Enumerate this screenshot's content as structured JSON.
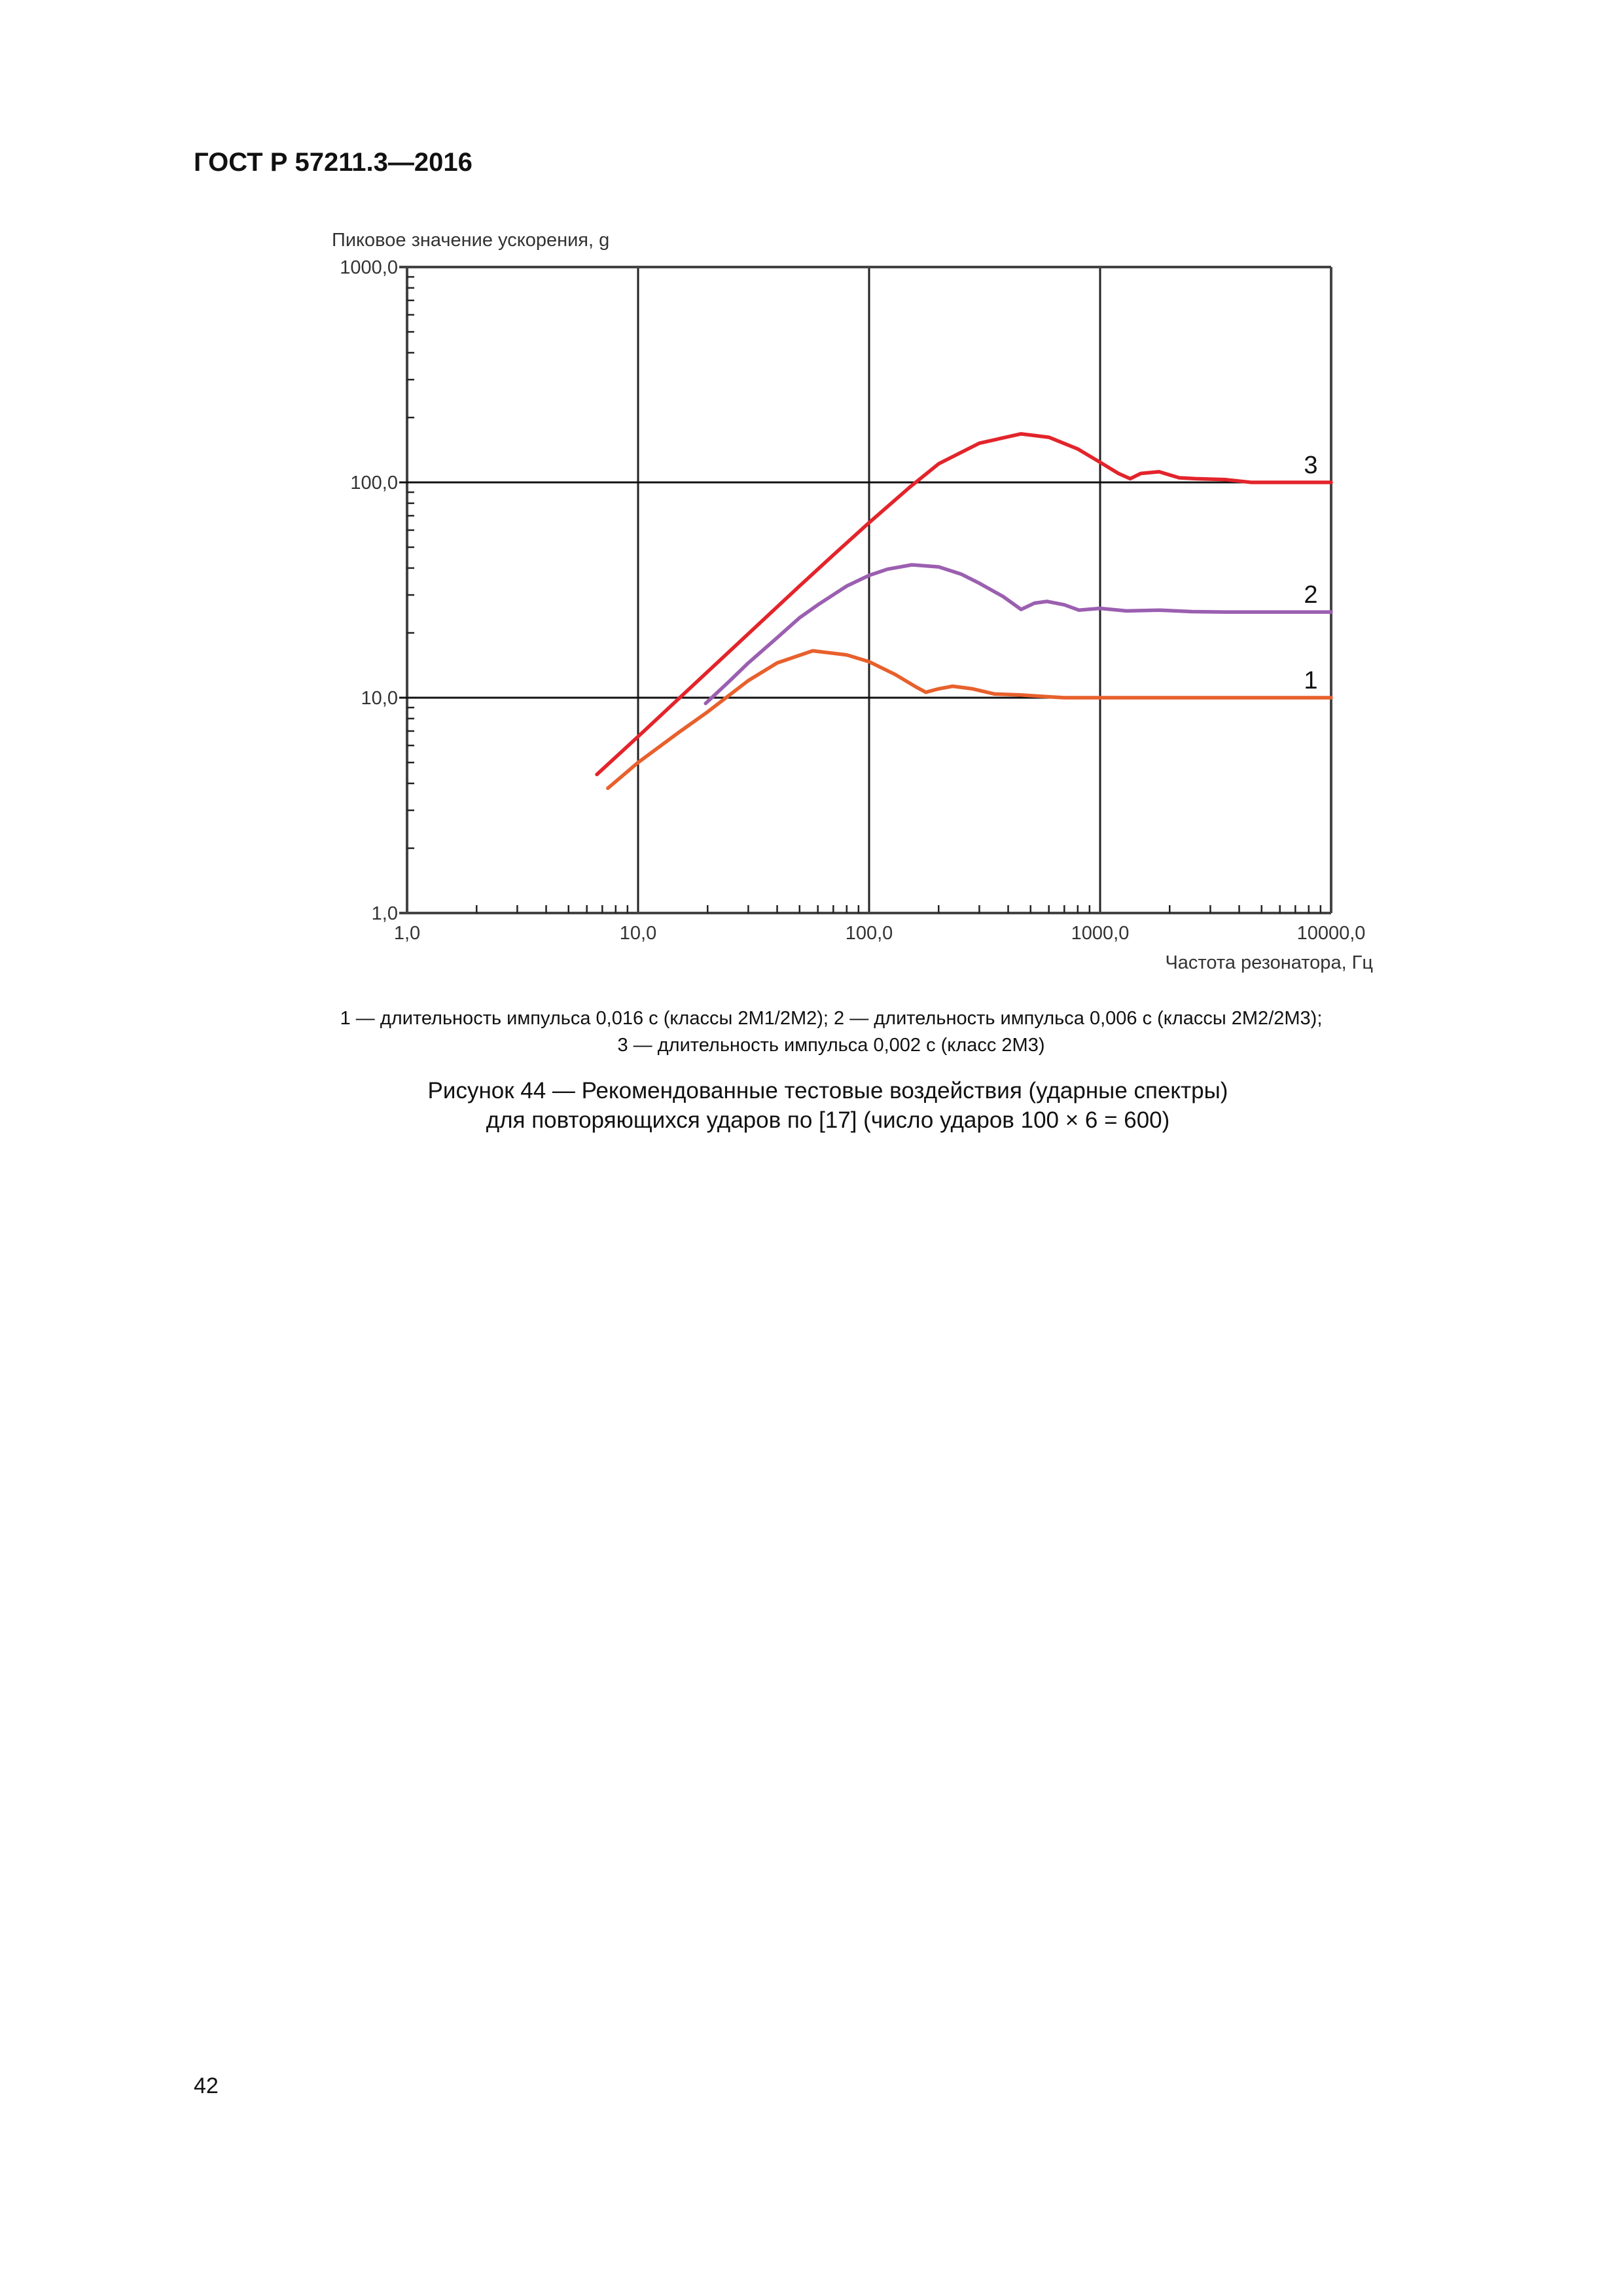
{
  "document": {
    "header": "ГОСТ Р 57211.3—2016",
    "page_number": "42"
  },
  "figure": {
    "legend_lines": [
      "1 — длительность импульса 0,016 с (классы 2М1/2М2); 2 — длительность импульса 0,006 с (классы 2М2/2М3);",
      "3 — длительность импульса 0,002 с (класс 2М3)"
    ],
    "caption_lines": [
      "Рисунок 44 — Рекомендованные тестовые воздействия (ударные спектры)",
      "для повторяющихся ударов по [17] (число ударов 100 × 6 = 600)"
    ]
  },
  "chart_data": {
    "type": "line",
    "title": "",
    "xlabel": "Частота резонатора, Гц",
    "ylabel": "Пиковое значение ускорения, g",
    "xscale": "log",
    "yscale": "log",
    "xlim": [
      1,
      10000
    ],
    "ylim": [
      1,
      1000
    ],
    "x_tick_labels": [
      "1,0",
      "10,0",
      "100,0",
      "1000,0",
      "10000,0"
    ],
    "y_tick_labels": [
      "1,0",
      "10,0",
      "100,0",
      "1000,0"
    ],
    "grid": "major decades",
    "legend_position": "curve labels at right end",
    "series": [
      {
        "name": "1",
        "label": "длительность импульса 0,016 с (классы 2М1/2М2)",
        "color": "#e8602c",
        "x": [
          7.4,
          10,
          15,
          20,
          30,
          40,
          57,
          80,
          100,
          130,
          160,
          176,
          200,
          230,
          280,
          350,
          450,
          600,
          700,
          1000,
          2000,
          5000,
          10000
        ],
        "y": [
          3.8,
          5.0,
          6.9,
          8.6,
          12.0,
          14.5,
          16.5,
          15.8,
          14.7,
          12.8,
          11.2,
          10.6,
          11.0,
          11.3,
          11.0,
          10.4,
          10.3,
          10.1,
          10.0,
          10.0,
          10.0,
          10.0,
          10.0
        ]
      },
      {
        "name": "2",
        "label": "длительность импульса 0,006 с (классы 2М2/2М3)",
        "color": "#9b5fb0",
        "x": [
          19.6,
          25,
          30,
          40,
          50,
          60,
          80,
          100,
          120,
          153,
          200,
          250,
          300,
          380,
          455,
          520,
          590,
          700,
          810,
          1000,
          1300,
          1800,
          2500,
          3500,
          10000
        ],
        "y": [
          9.4,
          12.0,
          14.5,
          19.0,
          23.5,
          27.0,
          33.0,
          37.0,
          39.5,
          41.4,
          40.5,
          37.5,
          34.0,
          29.5,
          25.7,
          27.5,
          28.0,
          27.0,
          25.5,
          26.0,
          25.3,
          25.5,
          25.1,
          25.0,
          25.0
        ]
      },
      {
        "name": "3",
        "label": "длительность импульса 0,002 с (класс 2М3)",
        "color": "#e3242b",
        "x": [
          6.63,
          10,
          15,
          20,
          30,
          50,
          70,
          100,
          150,
          200,
          300,
          454,
          600,
          800,
          1000,
          1200,
          1350,
          1500,
          1800,
          2200,
          2600,
          3500,
          4500,
          10000
        ],
        "y": [
          4.4,
          6.6,
          9.9,
          13.2,
          19.8,
          33.0,
          46.0,
          65.0,
          95.0,
          122.0,
          152.0,
          168.0,
          162.0,
          143.0,
          124.0,
          110.0,
          104.0,
          110.0,
          112.0,
          105.0,
          104.0,
          103.0,
          100.0,
          100.0
        ]
      }
    ]
  }
}
